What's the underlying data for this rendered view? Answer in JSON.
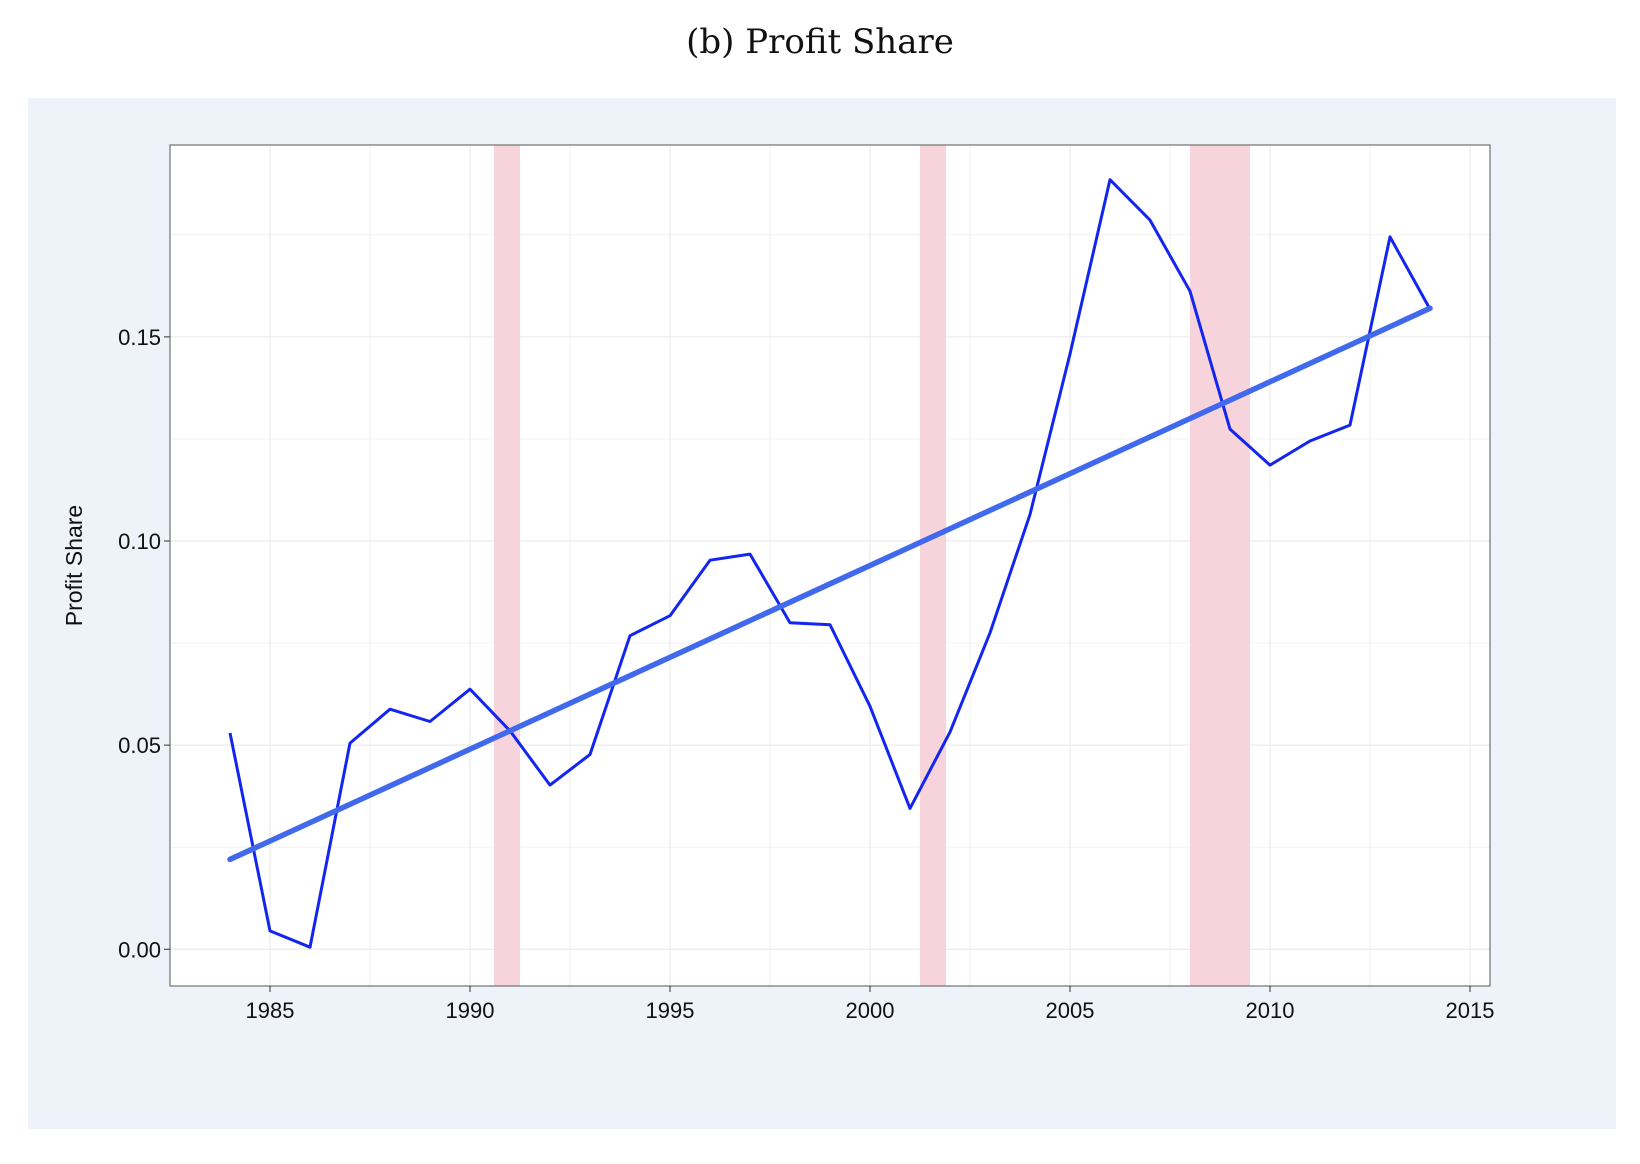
{
  "title": "(b) Profit Share",
  "colors": {
    "panel_background": "#eef3fa",
    "plot_background": "#ffffff",
    "series_line": "#1326f0",
    "trend_line": "#4169ee",
    "recession_shading": "#f7d3dc",
    "grid": "#ebebeb",
    "frame": "#555555"
  },
  "chart_data": {
    "type": "line",
    "title": "(b) Profit Share",
    "xlabel": "",
    "ylabel": "Profit Share",
    "xlim": [
      1982.5,
      2015.5
    ],
    "ylim": [
      -0.009,
      0.197
    ],
    "x_ticks": [
      1985,
      1990,
      1995,
      2000,
      2005,
      2010,
      2015
    ],
    "x_tick_labels": [
      "1985",
      "1990",
      "1995",
      "2000",
      "2005",
      "2010",
      "2015"
    ],
    "y_ticks": [
      0.0,
      0.05,
      0.1,
      0.15
    ],
    "y_tick_labels": [
      "0.00",
      "0.05",
      "0.10",
      "0.15"
    ],
    "grid": true,
    "recessions": [
      {
        "start": 1990.6,
        "end": 1991.25
      },
      {
        "start": 2001.25,
        "end": 2001.9
      },
      {
        "start": 2008.0,
        "end": 2009.5
      }
    ],
    "series": [
      {
        "x": [
          1984,
          1985,
          1986,
          1987,
          1988,
          1989,
          1990,
          1991,
          1992,
          1993,
          1994,
          1995,
          1996,
          1997,
          1998,
          1999,
          2000,
          2001,
          2002,
          2003,
          2004,
          2005,
          2006,
          2007,
          2008,
          2009,
          2010,
          2011,
          2012,
          2013,
          2014
        ],
        "values": [
          0.053,
          0.0045,
          0.0005,
          0.0505,
          0.0588,
          0.0558,
          0.0637,
          0.0535,
          0.0402,
          0.0477,
          0.0768,
          0.0817,
          0.0953,
          0.0968,
          0.08,
          0.0795,
          0.0595,
          0.0345,
          0.0532,
          0.0775,
          0.1065,
          0.1458,
          0.1885,
          0.1786,
          0.1612,
          0.1274,
          0.1186,
          0.1245,
          0.1284,
          0.1745,
          0.1568
        ]
      },
      {
        "x": [
          1984,
          2014
        ],
        "values": [
          0.022,
          0.157
        ]
      }
    ]
  }
}
